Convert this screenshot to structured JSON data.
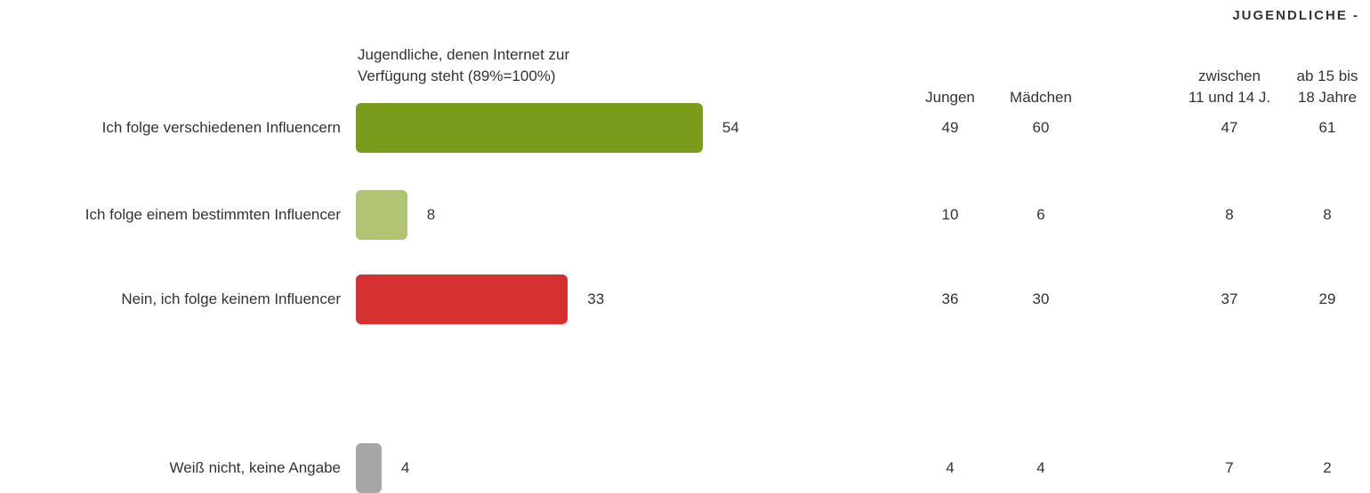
{
  "chart_data": {
    "type": "bar",
    "orientation": "horizontal",
    "title": "Jugendliche, denen Internet zur\nVerfügung steht (89%=100%)",
    "categories": [
      "Ich folge verschiedenen Influencern",
      "Ich folge einem bestimmten Influencer",
      "Nein, ich folge keinem Influencer",
      "Weiß nicht, keine Angabe"
    ],
    "values": [
      54,
      8,
      33,
      4
    ],
    "colors": [
      "#7a9c1a",
      "#b1c474",
      "#d63131",
      "#a6a6a6"
    ]
  },
  "table": {
    "header": "JUGENDLICHE -",
    "columns": [
      "Jungen",
      "Mädchen",
      "zwischen\n11 und 14 J.",
      "ab 15 bis\n18 Jahre"
    ],
    "rows": [
      [
        49,
        60,
        47,
        61
      ],
      [
        10,
        6,
        8,
        8
      ],
      [
        36,
        30,
        37,
        29
      ],
      [
        4,
        4,
        7,
        2
      ]
    ]
  }
}
